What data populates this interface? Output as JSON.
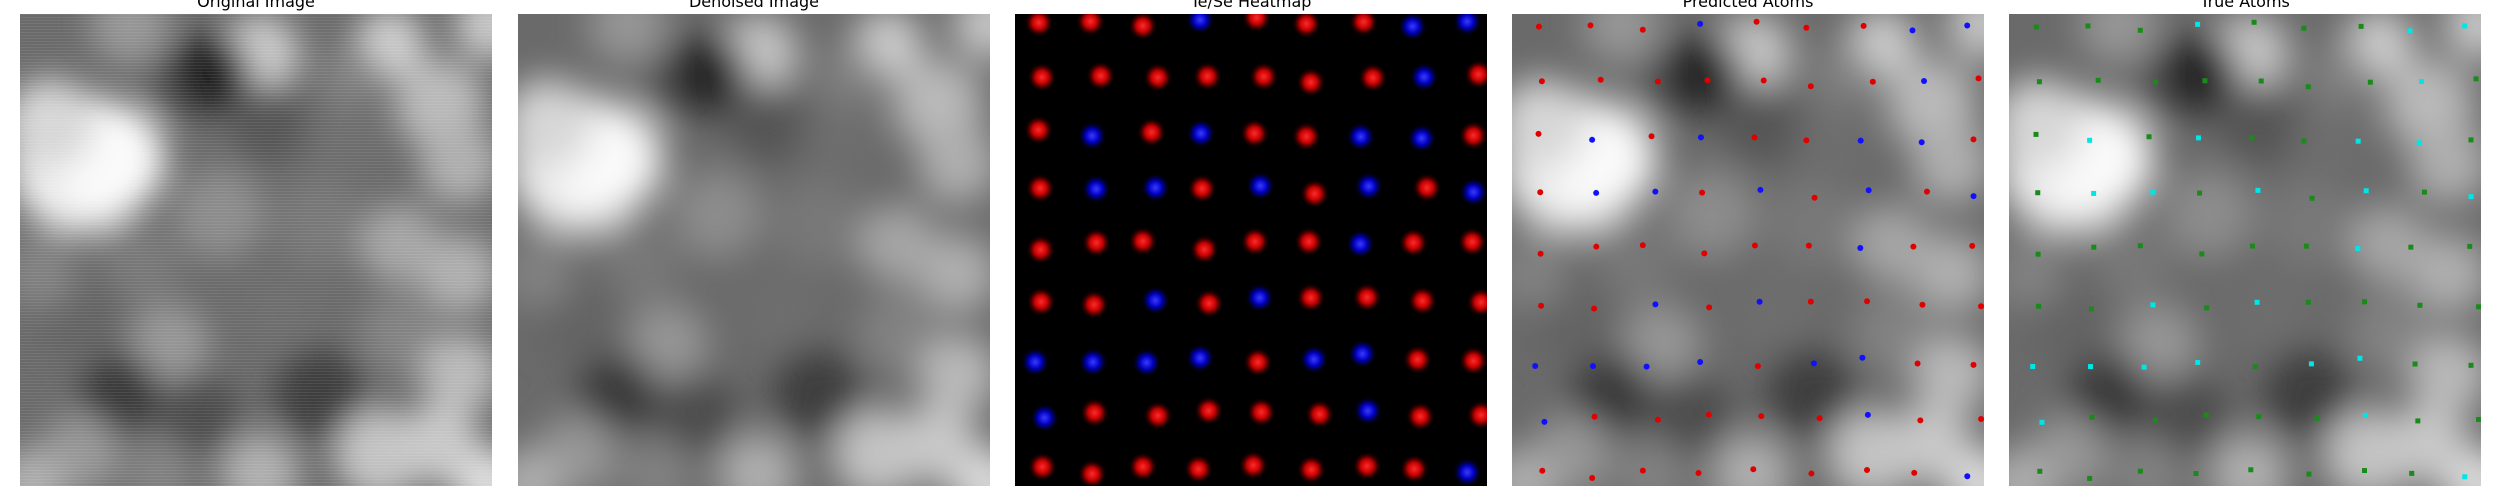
{
  "panels": [
    {
      "title": "Original Image",
      "kind": "grayscale-stm-noisy"
    },
    {
      "title": "Denoised Image",
      "kind": "grayscale-stm-smooth"
    },
    {
      "title": "Te/Se Heatmap",
      "kind": "atom-heatmap",
      "colors": {
        "te": "#e00000",
        "se": "#1010ff",
        "background": "#000000"
      }
    },
    {
      "title": "Predicted Atoms",
      "kind": "atom-overlay",
      "colors": {
        "type_a": "#e00000",
        "type_b": "#1010ff"
      }
    },
    {
      "title": "True Atoms",
      "kind": "atom-overlay",
      "colors": {
        "type_a": "#1a8a1a",
        "type_b": "#00e5e5"
      }
    }
  ]
}
